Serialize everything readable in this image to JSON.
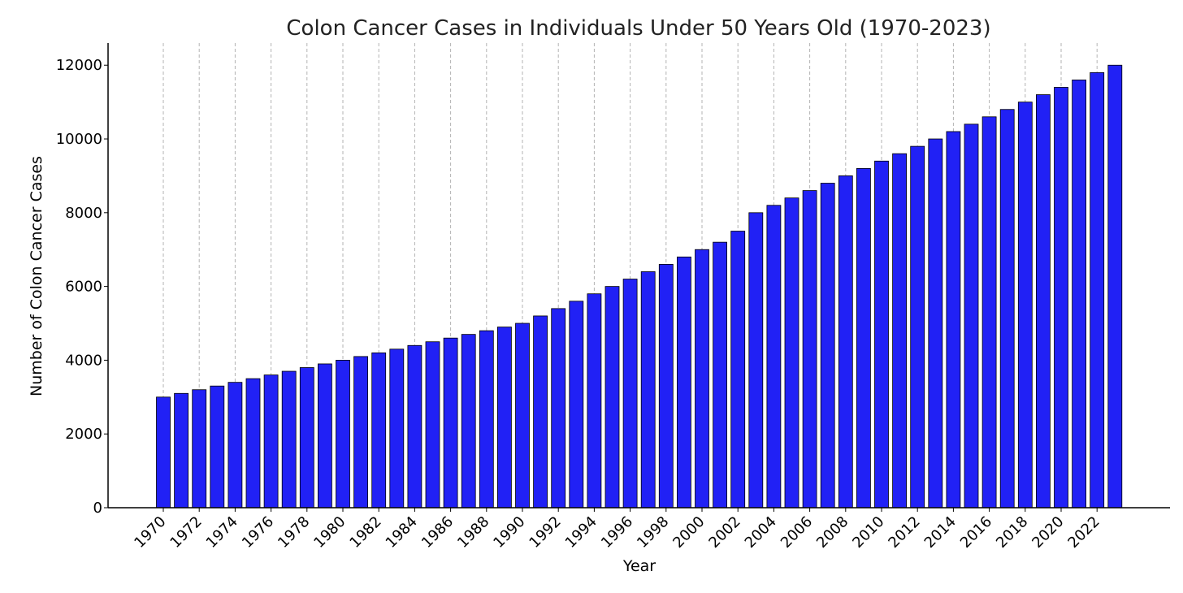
{
  "chart_data": {
    "type": "bar",
    "title": "Colon Cancer Cases in Individuals Under 50 Years Old (1970-2023)",
    "xlabel": "Year",
    "ylabel": "Number of Colon Cancer Cases",
    "categories": [
      1970,
      1971,
      1972,
      1973,
      1974,
      1975,
      1976,
      1977,
      1978,
      1979,
      1980,
      1981,
      1982,
      1983,
      1984,
      1985,
      1986,
      1987,
      1988,
      1989,
      1990,
      1991,
      1992,
      1993,
      1994,
      1995,
      1996,
      1997,
      1998,
      1999,
      2000,
      2001,
      2002,
      2003,
      2004,
      2005,
      2006,
      2007,
      2008,
      2009,
      2010,
      2011,
      2012,
      2013,
      2014,
      2015,
      2016,
      2017,
      2018,
      2019,
      2020,
      2021,
      2022,
      2023
    ],
    "values": [
      3000,
      3100,
      3200,
      3300,
      3400,
      3500,
      3600,
      3700,
      3800,
      3900,
      4000,
      4100,
      4200,
      4300,
      4400,
      4500,
      4600,
      4700,
      4800,
      4900,
      5000,
      5200,
      5400,
      5600,
      5800,
      6000,
      6200,
      6400,
      6600,
      6800,
      7000,
      7200,
      7500,
      8000,
      8200,
      8400,
      8600,
      8800,
      9000,
      9200,
      9400,
      9600,
      9800,
      10000,
      10200,
      10400,
      10600,
      10800,
      11000,
      11200,
      11400,
      11600,
      11800,
      12000
    ],
    "x_tick_labels": [
      "1970",
      "1972",
      "1974",
      "1976",
      "1978",
      "1980",
      "1982",
      "1984",
      "1986",
      "1988",
      "1990",
      "1992",
      "1994",
      "1996",
      "1998",
      "2000",
      "2002",
      "2004",
      "2006",
      "2008",
      "2010",
      "2012",
      "2014",
      "2016",
      "2018",
      "2020",
      "2022"
    ],
    "y_ticks": [
      0,
      2000,
      4000,
      6000,
      8000,
      10000,
      12000
    ],
    "ylim": [
      0,
      12600
    ],
    "grid": "vertical dashed",
    "bar_color": "#2121f5",
    "bar_edge_color": "#000000",
    "grid_color": "#b3b3b3"
  }
}
